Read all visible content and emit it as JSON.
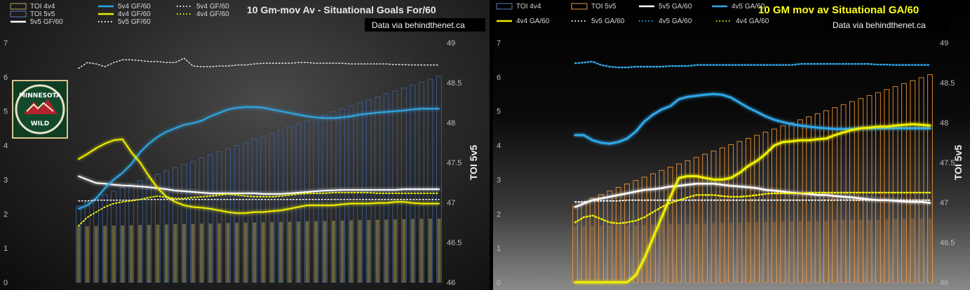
{
  "chart_data": [
    {
      "type": "bar",
      "title": "10 Gm-mov Av - Situational Goals For/60",
      "source": "Data via behindthenet.ca",
      "xlabel": "",
      "ylabel": "",
      "y2label": "TOI 5v5",
      "ylim": [
        0,
        7
      ],
      "y2lim": [
        46,
        49
      ],
      "yticks": [
        "0",
        "1",
        "2",
        "3",
        "4",
        "5",
        "6",
        "7"
      ],
      "y2ticks": [
        "46",
        "46.5",
        "47",
        "47.5",
        "48",
        "48.5",
        "49"
      ],
      "legend_position": "top-left",
      "legend": [
        {
          "label": "TOI 4v4",
          "kind": "box",
          "color": "#b8a860"
        },
        {
          "label": "TOI 5v5",
          "kind": "box",
          "color": "#5a7fbf"
        },
        {
          "label": "5v5 GF/60",
          "kind": "line",
          "color": "#ffffff"
        },
        {
          "label": "5v4 GF/60",
          "kind": "line",
          "color": "#2ea8e8"
        },
        {
          "label": "4v4 GF/60",
          "kind": "line",
          "color": "#f0f000"
        },
        {
          "label": "5v5 GF/60",
          "kind": "dots",
          "color": "#ffffff"
        },
        {
          "label": "5v4 GF/60",
          "kind": "dots",
          "color": "#ffffff"
        },
        {
          "label": "4v4 GF/60",
          "kind": "dots",
          "color": "#f0f000"
        }
      ],
      "logo": {
        "text_top": "MINNESOTA",
        "text_bottom": "WILD",
        "icon": "minnesota-wild-logo"
      },
      "bar_series": [
        {
          "name": "TOI 4v4",
          "axis": "secondary",
          "color": "#a39650",
          "start": 46.7,
          "end": 46.8
        },
        {
          "name": "TOI 5v5",
          "axis": "secondary",
          "color": "#3c5f9c",
          "start": 46.95,
          "end": 48.58
        }
      ],
      "series": [
        {
          "name": "5v5 GF/60",
          "style": "solid",
          "color": "#ffffff",
          "width": 2,
          "values": [
            3.1,
            3.0,
            2.9,
            2.88,
            2.85,
            2.83,
            2.82,
            2.8,
            2.78,
            2.75,
            2.72,
            2.68,
            2.66,
            2.64,
            2.62,
            2.6,
            2.6,
            2.6,
            2.6,
            2.6,
            2.6,
            2.58,
            2.58,
            2.58,
            2.6,
            2.62,
            2.64,
            2.66,
            2.68,
            2.69,
            2.7,
            2.7,
            2.7,
            2.7,
            2.7,
            2.7,
            2.7,
            2.72,
            2.72,
            2.72,
            2.72,
            2.72
          ]
        },
        {
          "name": "5v4 GF/60",
          "style": "solid",
          "color": "#2ea8e8",
          "width": 2,
          "values": [
            2.15,
            2.25,
            2.45,
            2.75,
            3.0,
            3.2,
            3.45,
            3.8,
            4.05,
            4.25,
            4.4,
            4.5,
            4.6,
            4.65,
            4.72,
            4.85,
            4.95,
            5.05,
            5.1,
            5.12,
            5.12,
            5.1,
            5.05,
            5.0,
            4.95,
            4.9,
            4.85,
            4.82,
            4.8,
            4.8,
            4.82,
            4.85,
            4.9,
            4.93,
            4.96,
            4.98,
            5.0,
            5.02,
            5.05,
            5.07,
            5.07,
            5.07
          ]
        },
        {
          "name": "4v4 GF/60",
          "style": "solid",
          "color": "#f0f000",
          "width": 2,
          "values": [
            3.6,
            3.75,
            3.92,
            4.05,
            4.15,
            4.18,
            3.8,
            3.5,
            3.1,
            2.75,
            2.5,
            2.35,
            2.25,
            2.2,
            2.18,
            2.15,
            2.1,
            2.05,
            2.02,
            2.02,
            2.05,
            2.05,
            2.08,
            2.1,
            2.15,
            2.2,
            2.25,
            2.25,
            2.25,
            2.25,
            2.28,
            2.3,
            2.3,
            2.3,
            2.32,
            2.32,
            2.35,
            2.35,
            2.32,
            2.3,
            2.3,
            2.3
          ]
        },
        {
          "name": "5v5 GF/60 (avg)",
          "style": "dotted",
          "color": "#ffffff",
          "width": 1.5,
          "values": [
            2.38,
            2.38,
            2.4,
            2.4,
            2.4,
            2.4,
            2.4,
            2.42,
            2.42,
            2.42,
            2.42,
            2.42,
            2.42,
            2.42,
            2.42,
            2.42,
            2.42,
            2.42,
            2.42,
            2.42,
            2.42,
            2.42,
            2.42,
            2.42,
            2.42,
            2.42,
            2.42,
            2.42,
            2.42,
            2.42,
            2.42,
            2.42,
            2.42,
            2.42,
            2.42,
            2.42,
            2.42,
            2.42,
            2.42,
            2.42,
            2.42,
            2.42
          ]
        },
        {
          "name": "5v4 GF/60 (avg)",
          "style": "dotted",
          "color": "#e8e8e8",
          "width": 1.5,
          "values": [
            6.25,
            6.42,
            6.38,
            6.3,
            6.42,
            6.5,
            6.5,
            6.48,
            6.45,
            6.45,
            6.42,
            6.42,
            6.55,
            6.32,
            6.3,
            6.3,
            6.32,
            6.32,
            6.35,
            6.35,
            6.38,
            6.4,
            6.4,
            6.4,
            6.4,
            6.42,
            6.42,
            6.4,
            6.4,
            6.4,
            6.4,
            6.38,
            6.38,
            6.38,
            6.38,
            6.38,
            6.36,
            6.36,
            6.35,
            6.35,
            6.35,
            6.35
          ]
        },
        {
          "name": "4v4 GF/60 (avg)",
          "style": "dotted",
          "color": "#f0f000",
          "width": 2,
          "values": [
            1.65,
            1.9,
            2.05,
            2.2,
            2.3,
            2.35,
            2.38,
            2.42,
            2.48,
            2.52,
            2.48,
            2.45,
            2.45,
            2.48,
            2.5,
            2.52,
            2.55,
            2.58,
            2.55,
            2.52,
            2.5,
            2.5,
            2.5,
            2.52,
            2.55,
            2.58,
            2.6,
            2.6,
            2.6,
            2.62,
            2.62,
            2.62,
            2.62,
            2.62,
            2.6,
            2.6,
            2.6,
            2.6,
            2.6,
            2.6,
            2.6,
            2.6
          ]
        }
      ]
    },
    {
      "type": "bar",
      "title": "10 GM mov av Situational GA/60",
      "source": "Data via behindthenet.ca",
      "xlabel": "",
      "ylabel": "",
      "y2label": "TOI 5v5",
      "ylim": [
        0,
        7
      ],
      "y2lim": [
        46,
        49
      ],
      "yticks": [
        "0",
        "1",
        "2",
        "3",
        "4",
        "5",
        "6",
        "7"
      ],
      "y2ticks": [
        "46",
        "46.5",
        "47",
        "47.5",
        "48",
        "48.5",
        "49"
      ],
      "legend_position": "top-left",
      "legend": [
        {
          "label": "TOI 4v4",
          "kind": "box",
          "color": "#5a7fbf"
        },
        {
          "label": "TOI 5v5",
          "kind": "box",
          "color": "#e89a50"
        },
        {
          "label": "5v5 GA/60",
          "kind": "line",
          "color": "#ffffff"
        },
        {
          "label": "4v5 GA/60",
          "kind": "line",
          "color": "#2ea8e8"
        },
        {
          "label": "4v4 GA/60",
          "kind": "line",
          "color": "#f0f000"
        },
        {
          "label": "5v5 GA/60",
          "kind": "dots",
          "color": "#ffffff"
        },
        {
          "label": "4v5 GA/60",
          "kind": "dots",
          "color": "#2ea8e8"
        },
        {
          "label": "4v4 GA/60",
          "kind": "dots",
          "color": "#f0f000"
        }
      ],
      "bar_series": [
        {
          "name": "TOI 4v4",
          "axis": "secondary",
          "color": "#8a6a45",
          "start": 46.7,
          "end": 46.8
        },
        {
          "name": "TOI 5v5",
          "axis": "secondary",
          "color": "#ff9a33",
          "start": 46.95,
          "end": 48.6
        }
      ],
      "series": [
        {
          "name": "5v5 GA/60",
          "style": "solid",
          "color": "#ffffff",
          "width": 2.5,
          "values": [
            2.2,
            2.3,
            2.4,
            2.45,
            2.5,
            2.55,
            2.6,
            2.65,
            2.7,
            2.72,
            2.75,
            2.8,
            2.82,
            2.85,
            2.88,
            2.88,
            2.88,
            2.85,
            2.82,
            2.8,
            2.78,
            2.75,
            2.7,
            2.68,
            2.65,
            2.62,
            2.6,
            2.58,
            2.55,
            2.55,
            2.52,
            2.5,
            2.48,
            2.45,
            2.42,
            2.4,
            2.4,
            2.38,
            2.36,
            2.35,
            2.35,
            2.32
          ]
        },
        {
          "name": "4v5 GA/60",
          "style": "solid",
          "color": "#2ea8e8",
          "width": 3,
          "values": [
            4.3,
            4.3,
            4.15,
            4.08,
            4.05,
            4.1,
            4.2,
            4.4,
            4.7,
            4.9,
            5.05,
            5.15,
            5.35,
            5.42,
            5.45,
            5.48,
            5.5,
            5.48,
            5.4,
            5.25,
            5.1,
            4.98,
            4.85,
            4.75,
            4.68,
            4.62,
            4.58,
            4.55,
            4.52,
            4.5,
            4.48,
            4.48,
            4.48,
            4.5,
            4.5,
            4.5,
            4.5,
            4.5,
            4.5,
            4.5,
            4.5,
            4.5
          ]
        },
        {
          "name": "4v4 GA/60",
          "style": "solid",
          "color": "#f0f000",
          "width": 3,
          "values": [
            0,
            0,
            0,
            0,
            0,
            0,
            0,
            0.2,
            0.7,
            1.3,
            1.9,
            2.5,
            3.05,
            3.1,
            3.1,
            3.05,
            3.0,
            3.0,
            3.05,
            3.2,
            3.4,
            3.55,
            3.75,
            4.0,
            4.1,
            4.12,
            4.15,
            4.15,
            4.18,
            4.2,
            4.3,
            4.38,
            4.45,
            4.5,
            4.52,
            4.55,
            4.55,
            4.58,
            4.6,
            4.62,
            4.6,
            4.58
          ]
        },
        {
          "name": "5v5 GA/60 (avg)",
          "style": "dotted",
          "color": "#ffffff",
          "width": 2,
          "values": [
            2.35,
            2.35,
            2.38,
            2.38,
            2.38,
            2.38,
            2.4,
            2.4,
            2.4,
            2.4,
            2.4,
            2.4,
            2.4,
            2.4,
            2.4,
            2.4,
            2.4,
            2.4,
            2.4,
            2.4,
            2.4,
            2.4,
            2.4,
            2.4,
            2.4,
            2.4,
            2.4,
            2.4,
            2.4,
            2.4,
            2.4,
            2.4,
            2.4,
            2.4,
            2.4,
            2.4,
            2.4,
            2.4,
            2.4,
            2.4,
            2.4,
            2.4
          ]
        },
        {
          "name": "4v5 GA/60 (avg)",
          "style": "dotted",
          "color": "#2ea8e8",
          "width": 2.5,
          "values": [
            6.4,
            6.42,
            6.45,
            6.35,
            6.3,
            6.28,
            6.28,
            6.3,
            6.3,
            6.3,
            6.3,
            6.32,
            6.32,
            6.32,
            6.35,
            6.35,
            6.35,
            6.35,
            6.35,
            6.35,
            6.35,
            6.35,
            6.35,
            6.35,
            6.35,
            6.35,
            6.38,
            6.38,
            6.38,
            6.38,
            6.38,
            6.38,
            6.38,
            6.38,
            6.38,
            6.36,
            6.36,
            6.35,
            6.35,
            6.35,
            6.35,
            6.35
          ]
        },
        {
          "name": "4v4 GA/60 (avg)",
          "style": "dotted",
          "color": "#f0f000",
          "width": 2.5,
          "values": [
            1.75,
            1.9,
            1.95,
            1.85,
            1.75,
            1.72,
            1.75,
            1.8,
            1.9,
            2.05,
            2.2,
            2.32,
            2.4,
            2.48,
            2.55,
            2.55,
            2.55,
            2.52,
            2.5,
            2.5,
            2.52,
            2.55,
            2.58,
            2.6,
            2.6,
            2.6,
            2.6,
            2.62,
            2.62,
            2.62,
            2.62,
            2.62,
            2.62,
            2.62,
            2.62,
            2.62,
            2.62,
            2.62,
            2.62,
            2.62,
            2.62,
            2.62
          ]
        }
      ]
    }
  ]
}
